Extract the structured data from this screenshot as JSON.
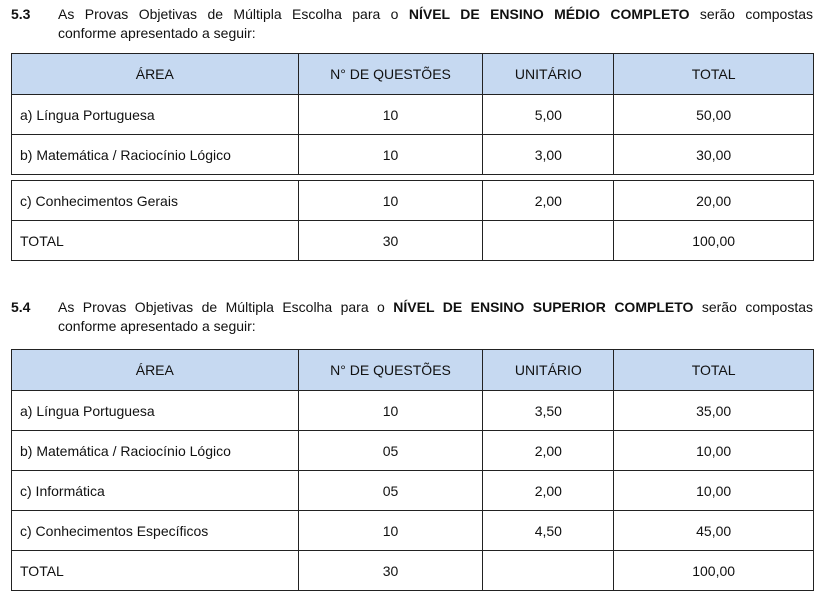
{
  "sections": [
    {
      "number": "5.3",
      "text_before": "As Provas Objetivas de Múltipla Escolha para o ",
      "level": "NÍVEL DE ENSINO MÉDIO COMPLETO",
      "text_after": " serão compostas",
      "line2": "conforme apresentado a seguir:",
      "headers": [
        "ÁREA",
        "N° DE QUESTÕES",
        "UNITÁRIO",
        "TOTAL"
      ],
      "rows": [
        [
          "a) Língua Portuguesa",
          "10",
          "5,00",
          "50,00"
        ],
        [
          "b) Matemática / Raciocínio Lógico",
          "10",
          "3,00",
          "30,00"
        ],
        [
          "c) Conhecimentos Gerais",
          "10",
          "2,00",
          "20,00"
        ],
        [
          "TOTAL",
          "30",
          "",
          "100,00"
        ]
      ]
    },
    {
      "number": "5.4",
      "text_before": "As Provas Objetivas de Múltipla Escolha para o ",
      "level": "NÍVEL DE ENSINO SUPERIOR COMPLETO",
      "text_after": " serão compostas",
      "line2": "conforme apresentado a seguir:",
      "headers": [
        "ÁREA",
        "N° DE QUESTÕES",
        "UNITÁRIO",
        "TOTAL"
      ],
      "rows": [
        [
          "a) Língua Portuguesa",
          "10",
          "3,50",
          "35,00"
        ],
        [
          "b) Matemática / Raciocínio Lógico",
          "05",
          "2,00",
          "10,00"
        ],
        [
          "c) Informática",
          "05",
          "2,00",
          "10,00"
        ],
        [
          "c) Conhecimentos Específicos",
          "10",
          "4,50",
          "45,00"
        ],
        [
          "TOTAL",
          "30",
          "",
          "100,00"
        ]
      ]
    }
  ]
}
